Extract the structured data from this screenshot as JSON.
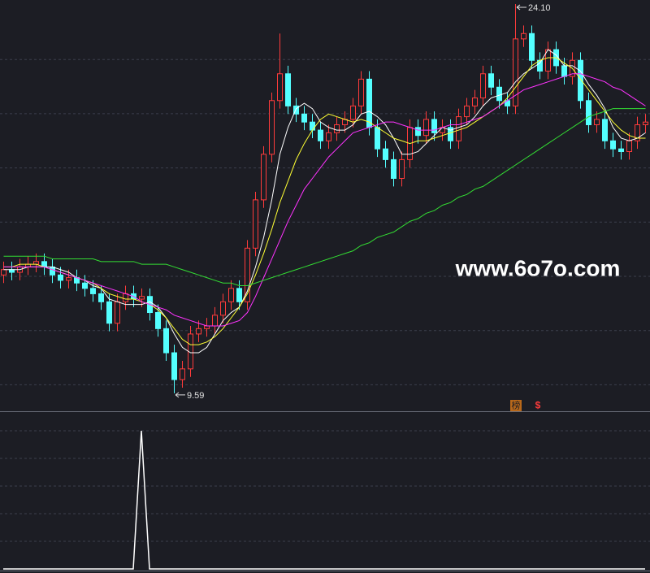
{
  "chart_data": {
    "type": "candlestick",
    "up_color": "#ff3b3b",
    "down_color": "#54ffff",
    "ylim": [
      8.95,
      24.25
    ],
    "high_label": "24.10",
    "low_label": "9.59",
    "watermark": "www.6o7o.com",
    "badge": "榜",
    "signal": "$",
    "open": [
      14.0,
      14.2,
      14.1,
      14.3,
      14.4,
      14.5,
      14.3,
      14.0,
      13.8,
      13.9,
      13.7,
      13.5,
      13.3,
      13.0,
      12.2,
      13.0,
      13.3,
      13.1,
      13.2,
      12.6,
      12.0,
      11.1,
      10.1,
      10.5,
      11.8,
      12.0,
      12.1,
      12.5,
      13.0,
      13.5,
      13.0,
      15.0,
      16.8,
      18.5,
      20.5,
      21.5,
      20.3,
      20.0,
      19.7,
      19.4,
      19.0,
      19.3,
      19.6,
      19.8,
      20.3,
      21.3,
      19.5,
      18.7,
      18.3,
      17.6,
      18.3,
      19.5,
      19.2,
      19.8,
      19.3,
      19.5,
      19.0,
      19.9,
      20.3,
      20.6,
      21.5,
      21.0,
      20.5,
      20.3,
      22.8,
      23.0,
      22.0,
      21.6,
      22.4,
      21.8,
      21.4,
      22.0,
      20.5,
      19.6,
      19.8,
      19.0,
      18.7,
      18.6,
      19.0,
      19.6
    ],
    "high": [
      14.5,
      14.5,
      14.6,
      14.7,
      14.8,
      14.8,
      14.6,
      14.3,
      14.2,
      14.2,
      14.0,
      13.8,
      13.6,
      13.3,
      13.3,
      13.6,
      13.6,
      13.5,
      13.5,
      12.9,
      12.3,
      11.4,
      10.8,
      12.1,
      12.3,
      12.4,
      12.8,
      13.3,
      13.8,
      13.8,
      15.3,
      17.1,
      18.8,
      20.8,
      23.0,
      21.8,
      20.6,
      20.3,
      20.0,
      19.7,
      19.6,
      19.9,
      20.1,
      20.6,
      21.6,
      21.6,
      19.8,
      19.0,
      18.6,
      18.6,
      19.8,
      19.8,
      20.1,
      20.1,
      19.8,
      19.8,
      20.2,
      20.6,
      20.9,
      21.8,
      21.8,
      21.3,
      20.8,
      24.1,
      23.3,
      23.3,
      22.3,
      22.7,
      22.7,
      22.1,
      22.3,
      22.3,
      20.8,
      20.1,
      20.1,
      19.3,
      19.0,
      19.3,
      19.9,
      20.0
    ],
    "low": [
      13.7,
      13.8,
      13.8,
      14.0,
      14.1,
      14.0,
      13.7,
      13.5,
      13.5,
      13.4,
      13.2,
      13.0,
      12.7,
      11.9,
      11.9,
      12.7,
      12.8,
      12.8,
      12.3,
      11.7,
      10.8,
      9.59,
      9.8,
      10.2,
      11.5,
      11.7,
      11.8,
      12.2,
      12.7,
      12.7,
      12.7,
      14.7,
      16.5,
      18.2,
      20.2,
      20.0,
      19.7,
      19.4,
      19.1,
      18.7,
      18.7,
      19.0,
      19.3,
      19.5,
      20.0,
      19.2,
      18.4,
      18.0,
      17.3,
      17.3,
      18.0,
      18.9,
      18.9,
      19.0,
      19.0,
      18.7,
      18.7,
      19.6,
      20.0,
      20.3,
      20.7,
      20.2,
      20.0,
      20.0,
      22.5,
      21.7,
      21.3,
      21.3,
      21.5,
      21.1,
      21.1,
      20.2,
      19.3,
      19.3,
      18.7,
      18.4,
      18.3,
      18.3,
      18.7,
      19.3
    ],
    "close": [
      14.2,
      14.1,
      14.3,
      14.4,
      14.5,
      14.3,
      14.0,
      13.8,
      13.9,
      13.7,
      13.5,
      13.3,
      13.0,
      12.2,
      13.0,
      13.3,
      13.1,
      13.2,
      12.6,
      12.0,
      11.1,
      10.1,
      10.5,
      11.8,
      12.0,
      12.1,
      12.5,
      13.0,
      13.5,
      13.0,
      15.0,
      16.8,
      18.5,
      20.5,
      21.5,
      20.3,
      20.0,
      19.7,
      19.4,
      19.0,
      19.3,
      19.6,
      19.8,
      20.3,
      21.3,
      19.5,
      18.7,
      18.3,
      17.6,
      18.3,
      19.5,
      19.2,
      19.8,
      19.3,
      19.5,
      19.0,
      19.9,
      20.3,
      20.6,
      21.5,
      21.0,
      20.5,
      20.3,
      22.8,
      23.0,
      22.0,
      21.6,
      22.4,
      21.8,
      21.4,
      22.0,
      20.5,
      19.6,
      19.8,
      19.0,
      18.7,
      18.6,
      19.0,
      19.6,
      19.7
    ],
    "series": [
      {
        "color": "#ffffff",
        "values": [
          14.2,
          14.2,
          14.2,
          14.3,
          14.3,
          14.3,
          14.3,
          14.2,
          14.1,
          13.9,
          13.8,
          13.6,
          13.5,
          13.1,
          13.0,
          12.9,
          12.9,
          12.9,
          13.0,
          12.8,
          12.4,
          11.8,
          11.3,
          11.1,
          11.1,
          11.3,
          11.8,
          12.3,
          12.6,
          12.8,
          13.4,
          14.3,
          15.4,
          16.8,
          18.5,
          19.5,
          20.2,
          20.4,
          20.2,
          19.7,
          19.5,
          19.4,
          19.4,
          19.6,
          20.0,
          20.1,
          19.9,
          19.6,
          19.1,
          18.5,
          18.5,
          18.6,
          18.9,
          19.2,
          19.5,
          19.4,
          19.5,
          19.6,
          19.9,
          20.3,
          20.6,
          20.7,
          20.8,
          21.2,
          21.5,
          21.7,
          21.9,
          22.4,
          22.2,
          21.8,
          21.8,
          21.6,
          21.1,
          20.7,
          20.2,
          19.5,
          19.1,
          19.0,
          19.1,
          19.3
        ]
      },
      {
        "color": "#ffff33",
        "values": [
          14.3,
          14.3,
          14.4,
          14.4,
          14.4,
          14.3,
          14.2,
          14.1,
          14.0,
          13.9,
          13.8,
          13.7,
          13.5,
          13.3,
          13.2,
          13.1,
          13.1,
          13.0,
          12.9,
          12.7,
          12.4,
          12.0,
          11.6,
          11.4,
          11.4,
          11.5,
          11.7,
          12.0,
          12.4,
          12.8,
          13.3,
          14.0,
          14.8,
          15.7,
          16.7,
          17.5,
          18.3,
          18.9,
          19.4,
          19.8,
          20.0,
          19.9,
          19.8,
          19.7,
          19.8,
          19.7,
          19.5,
          19.3,
          19.1,
          19.0,
          18.9,
          19.0,
          19.0,
          19.1,
          19.2,
          19.3,
          19.4,
          19.5,
          19.7,
          19.9,
          20.1,
          20.3,
          20.6,
          21.0,
          21.4,
          21.8,
          22.0,
          22.1,
          22.1,
          21.9,
          21.7,
          21.3,
          20.9,
          20.5,
          20.1,
          19.7,
          19.4,
          19.2,
          19.1,
          19.1
        ]
      },
      {
        "color": "#ff33ff",
        "values": [
          14.3,
          14.3,
          14.3,
          14.3,
          14.3,
          14.3,
          14.2,
          14.1,
          14.0,
          13.9,
          13.8,
          13.7,
          13.6,
          13.5,
          13.4,
          13.3,
          13.2,
          13.0,
          12.9,
          12.8,
          12.7,
          12.5,
          12.4,
          12.3,
          12.2,
          12.1,
          12.1,
          12.1,
          12.2,
          12.3,
          12.6,
          13.2,
          13.9,
          14.6,
          15.3,
          16.0,
          16.6,
          17.2,
          17.6,
          18.0,
          18.4,
          18.7,
          19.0,
          19.3,
          19.4,
          19.5,
          19.6,
          19.7,
          19.7,
          19.6,
          19.5,
          19.4,
          19.4,
          19.4,
          19.5,
          19.6,
          19.6,
          19.7,
          19.8,
          19.9,
          20.1,
          20.3,
          20.5,
          20.7,
          20.9,
          21.0,
          21.1,
          21.2,
          21.3,
          21.4,
          21.5,
          21.5,
          21.4,
          21.3,
          21.2,
          21.0,
          20.9,
          20.7,
          20.5,
          20.3
        ]
      },
      {
        "color": "#33dd33",
        "values": [
          14.7,
          14.7,
          14.7,
          14.7,
          14.7,
          14.7,
          14.6,
          14.6,
          14.6,
          14.6,
          14.6,
          14.6,
          14.5,
          14.5,
          14.5,
          14.5,
          14.5,
          14.4,
          14.4,
          14.4,
          14.4,
          14.3,
          14.2,
          14.1,
          14.0,
          13.9,
          13.8,
          13.7,
          13.7,
          13.6,
          13.6,
          13.7,
          13.8,
          13.9,
          14.0,
          14.1,
          14.2,
          14.3,
          14.4,
          14.5,
          14.6,
          14.7,
          14.8,
          14.9,
          15.1,
          15.2,
          15.4,
          15.5,
          15.6,
          15.8,
          16.0,
          16.1,
          16.3,
          16.4,
          16.6,
          16.7,
          16.9,
          17.0,
          17.2,
          17.3,
          17.5,
          17.7,
          17.9,
          18.1,
          18.3,
          18.5,
          18.7,
          18.9,
          19.1,
          19.3,
          19.5,
          19.7,
          19.9,
          20.0,
          20.1,
          20.2,
          20.2,
          20.2,
          20.2,
          20.2
        ]
      }
    ],
    "indicator": {
      "color": "#ffffff",
      "ylim": [
        0,
        100
      ],
      "values": [
        0,
        0,
        0,
        0,
        0,
        0,
        0,
        0,
        0,
        0,
        0,
        0,
        0,
        0,
        0,
        0,
        0,
        100,
        0,
        0,
        0,
        0,
        0,
        0,
        0,
        0,
        0,
        0,
        0,
        0,
        0,
        0,
        0,
        0,
        0,
        0,
        0,
        0,
        0,
        0,
        0,
        0,
        0,
        0,
        0,
        0,
        0,
        0,
        0,
        0,
        0,
        0,
        0,
        0,
        0,
        0,
        0,
        0,
        0,
        0,
        0,
        0,
        0,
        0,
        0,
        0,
        0,
        0,
        0,
        0,
        0,
        0,
        0,
        0,
        0,
        0,
        0,
        0,
        0,
        0
      ]
    }
  }
}
